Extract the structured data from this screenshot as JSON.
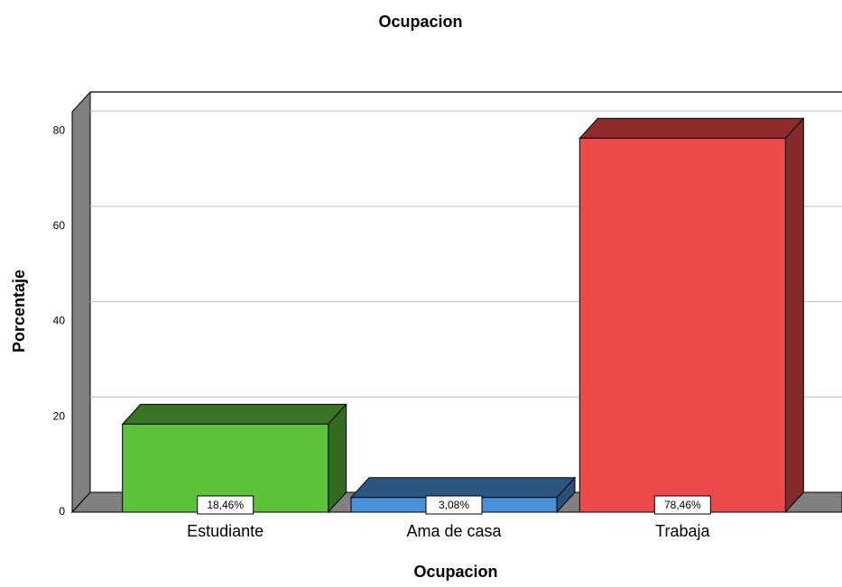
{
  "chart_data": {
    "type": "bar3d",
    "title": "Ocupacion",
    "x_label": "Ocupacion",
    "y_label": "Porcentaje",
    "categories": [
      "Estudiante",
      "Ama de casa",
      "Trabaja"
    ],
    "values": [
      18.46,
      3.08,
      78.46
    ],
    "value_labels": [
      "18,46%",
      "3,08%",
      "78,46%"
    ],
    "colors": [
      "#5cc23a",
      "#4a90d9",
      "#ec4a4a"
    ],
    "ylim": [
      0,
      84
    ],
    "yticks": [
      0,
      20,
      40,
      60,
      80
    ],
    "grid": true
  }
}
